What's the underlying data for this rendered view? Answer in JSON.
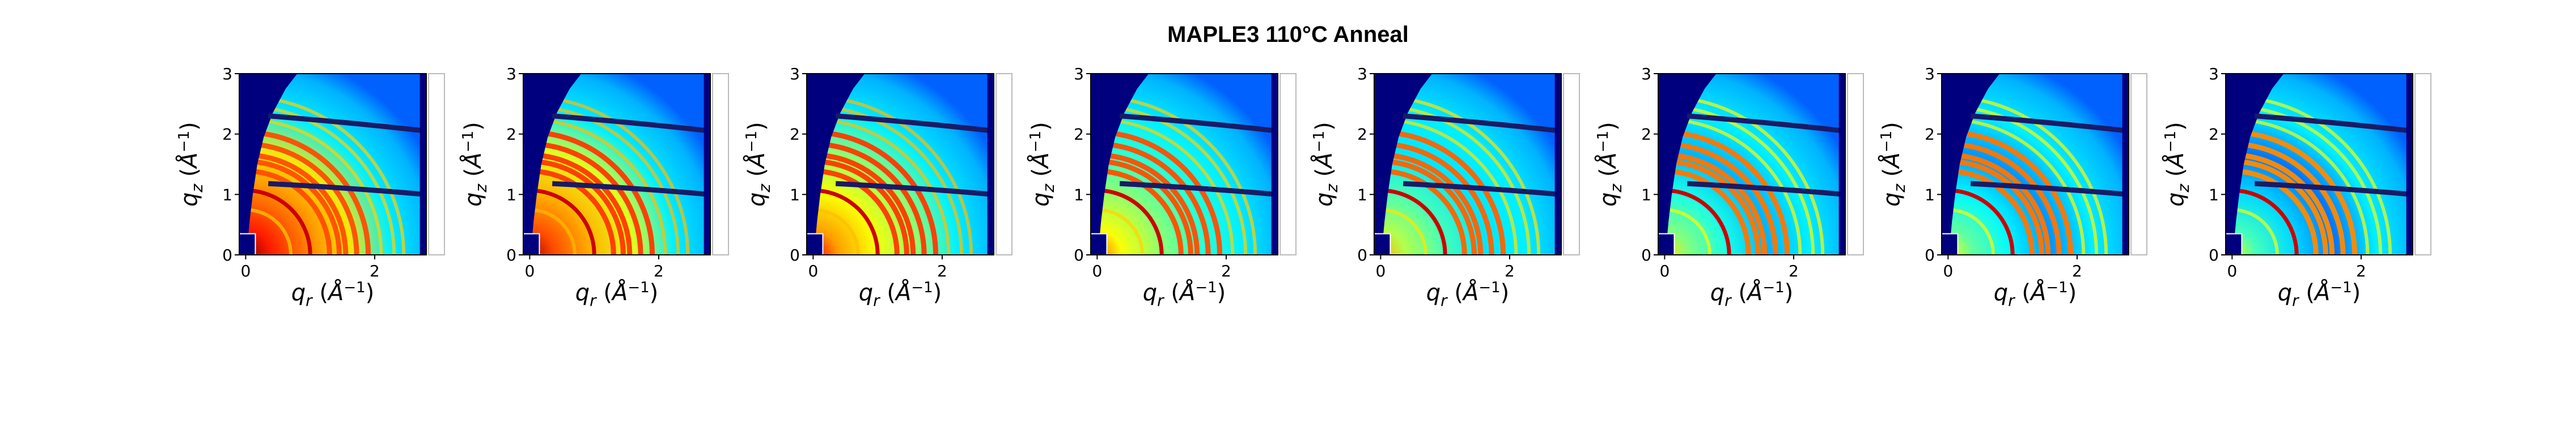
{
  "chart_data": {
    "type": "heatmap",
    "title": "MAPLE3 110°C Anneal",
    "panel_count": 8,
    "xlabel": "q_r (Å^{-1})",
    "ylabel": "q_z (Å^{-1})",
    "xlim": [
      -0.1,
      2.8
    ],
    "ylim": [
      0,
      3
    ],
    "xticks": [
      "0",
      "2"
    ],
    "yticks": [
      "0",
      "1",
      "2",
      "3"
    ],
    "colormap": "jet",
    "grid": false,
    "legend": "none",
    "rings_q": [
      0.7,
      1.0,
      1.3,
      1.45,
      1.55,
      1.72,
      1.9,
      2.1,
      2.3,
      2.45
    ],
    "highlight_ring_q": 1.0,
    "highlight_ring_color": "#cc0000",
    "detector_gap_color": "#1a1a66",
    "masked_color": "#00007f",
    "background_level": [
      0.85,
      0.8,
      0.72,
      0.62,
      0.55,
      0.5,
      0.47,
      0.44
    ],
    "ring_intensity": [
      0.72,
      0.74,
      0.74,
      0.72,
      0.7,
      0.68,
      0.68,
      0.66
    ]
  }
}
